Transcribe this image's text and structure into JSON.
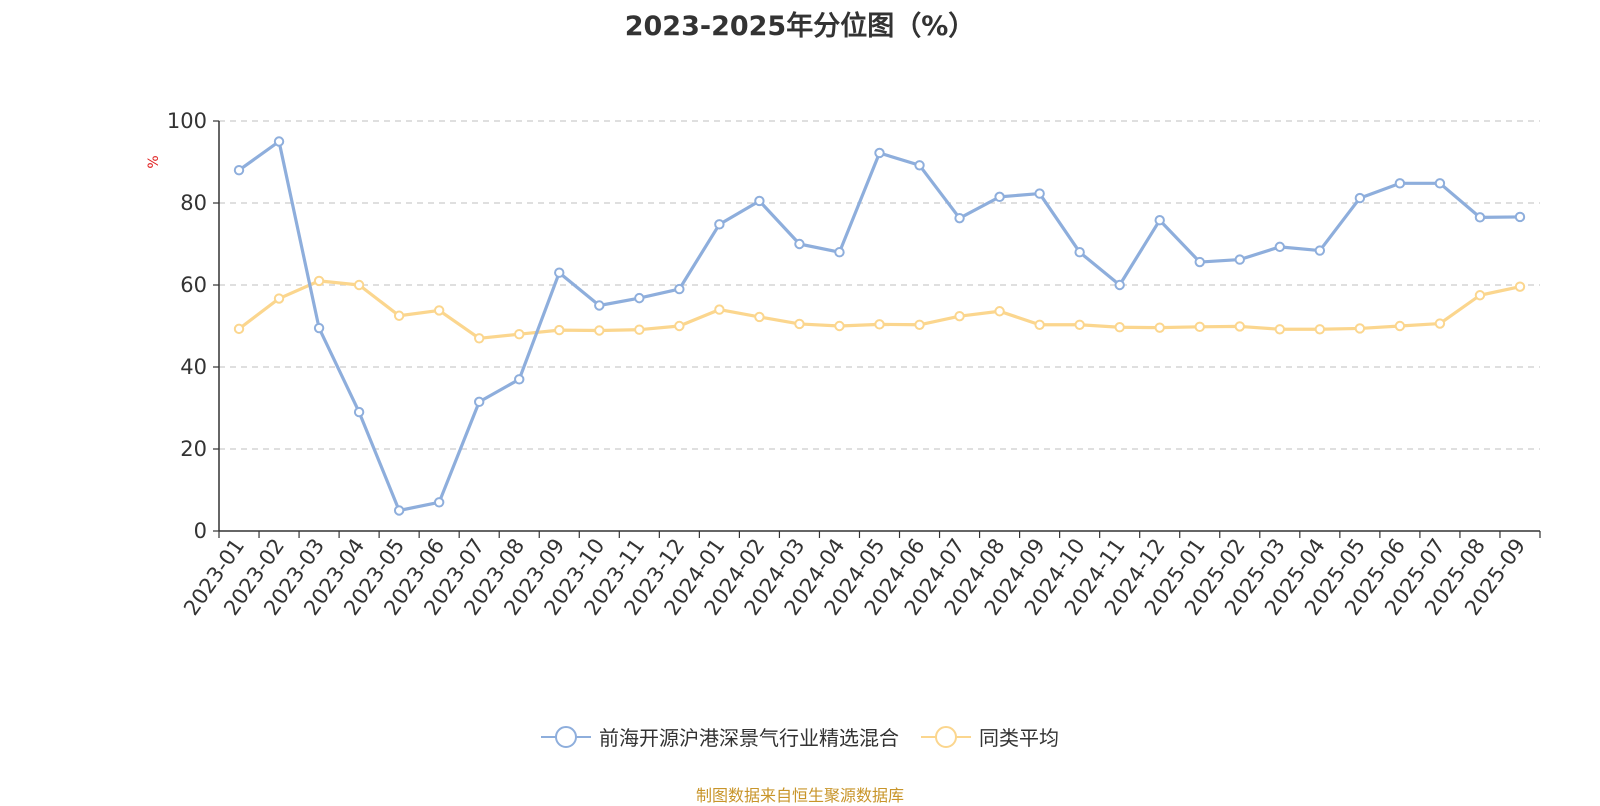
{
  "chart_data": {
    "type": "line",
    "title": "2023-2025年分位图（%）",
    "ylabel": "%",
    "ylim": [
      0,
      100
    ],
    "yticks": [
      0,
      20,
      40,
      60,
      80,
      100
    ],
    "grid": true,
    "legend_position": "bottom",
    "categories": [
      "2023-01",
      "2023-02",
      "2023-03",
      "2023-04",
      "2023-05",
      "2023-06",
      "2023-07",
      "2023-08",
      "2023-09",
      "2023-10",
      "2023-11",
      "2023-12",
      "2024-01",
      "2024-02",
      "2024-03",
      "2024-04",
      "2024-05",
      "2024-06",
      "2024-07",
      "2024-08",
      "2024-09",
      "2024-10",
      "2024-11",
      "2024-12",
      "2025-01",
      "2025-02",
      "2025-03",
      "2025-04",
      "2025-05",
      "2025-06",
      "2025-07",
      "2025-08",
      "2025-09"
    ],
    "series": [
      {
        "name": "前海开源沪港深景气行业精选混合",
        "color": "#8eaedc",
        "values": [
          88,
          95,
          49.5,
          29,
          5,
          7,
          31.5,
          37,
          63,
          55,
          56.8,
          59,
          74.8,
          80.5,
          70,
          68,
          92.2,
          89.2,
          76.3,
          81.5,
          82.3,
          68,
          60,
          75.8,
          65.6,
          66.2,
          69.3,
          68.4,
          81.2,
          84.8,
          84.8,
          76.5,
          76.6
        ]
      },
      {
        "name": "同类平均",
        "color": "#fbd68e",
        "values": [
          49.3,
          56.7,
          61,
          60,
          52.5,
          53.8,
          47,
          48,
          49,
          48.9,
          49.1,
          50,
          54,
          52.2,
          50.5,
          50,
          50.4,
          50.3,
          52.4,
          53.6,
          50.3,
          50.3,
          49.7,
          49.6,
          49.8,
          49.9,
          49.2,
          49.2,
          49.4,
          50,
          50.6,
          57.5,
          59.6
        ]
      }
    ]
  },
  "source_text": "制图数据来自恒生聚源数据库"
}
